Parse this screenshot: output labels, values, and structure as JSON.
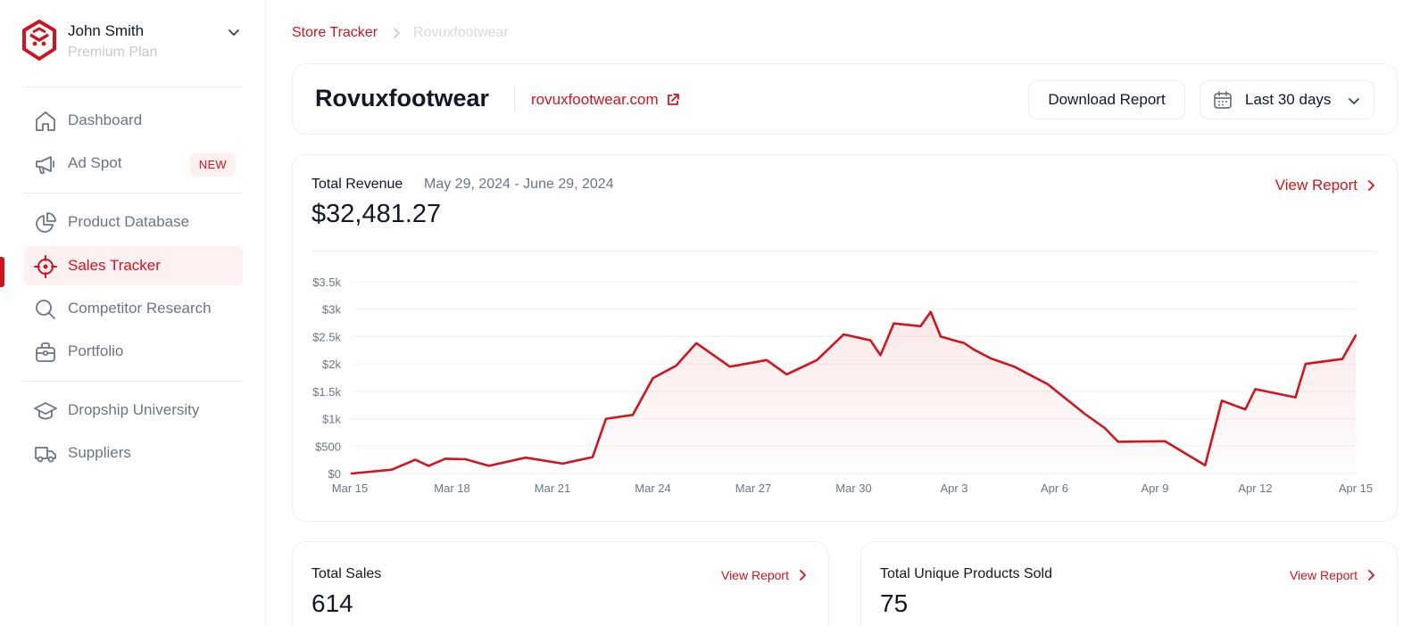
{
  "profile": {
    "name": "John Smith",
    "plan": "Premium Plan"
  },
  "nav": {
    "dashboard": "Dashboard",
    "ad_spot": "Ad Spot",
    "ad_spot_badge": "NEW",
    "product_database": "Product Database",
    "sales_tracker": "Sales Tracker",
    "competitor_research": "Competitor Research",
    "portfolio": "Portfolio",
    "dropship_university": "Dropship University",
    "suppliers": "Suppliers"
  },
  "breadcrumb": {
    "root": "Store Tracker",
    "current": "Rovuxfootwear"
  },
  "store": {
    "name": "Rovuxfootwear",
    "url": "rovuxfootwear.com",
    "download_label": "Download Report",
    "range_label": "Last 30 days"
  },
  "revenue": {
    "label": "Total Revenue",
    "dates": "May 29, 2024 - June 29, 2024",
    "value": "$32,481.27",
    "view_report": "View Report"
  },
  "stats": {
    "total_sales_label": "Total Sales",
    "total_sales_value": "614",
    "unique_products_label": "Total Unique Products Sold",
    "unique_products_value": "75",
    "view_report": "View Report"
  },
  "colors": {
    "accent": "#d0151f",
    "text": "#111827",
    "muted": "#6b7587"
  },
  "chart_data": {
    "type": "area",
    "title": "",
    "xlabel": "",
    "ylabel": "",
    "ylim": [
      0,
      3500
    ],
    "y_ticks": [
      0,
      500,
      1000,
      1500,
      2000,
      2500,
      3000,
      3500
    ],
    "y_tick_labels": [
      "$0",
      "$500",
      "$1k",
      "$1.5k",
      "$2k",
      "$2.5k",
      "$3k",
      "$3.5k"
    ],
    "x_tick_labels": [
      "Mar 15",
      "Mar 18",
      "Mar 21",
      "Mar 24",
      "Mar 27",
      "Mar 30",
      "Apr 3",
      "Apr 6",
      "Apr 9",
      "Apr 12",
      "Apr 15"
    ],
    "x_tick_positions": [
      0,
      3,
      6,
      9,
      12,
      15,
      18,
      21,
      24,
      27,
      30
    ],
    "x": [
      0,
      1.2,
      1.9,
      2.3,
      2.8,
      3.4,
      4.1,
      5.2,
      6.3,
      7.2,
      7.6,
      8.4,
      9.0,
      9.7,
      10.3,
      11.3,
      12.4,
      13.0,
      13.9,
      14.7,
      15.5,
      15.8,
      16.2,
      17.0,
      17.3,
      17.6,
      18.0,
      18.3,
      18.6,
      19.1,
      19.8,
      20.8,
      21.9,
      22.5,
      22.9,
      24.3,
      25.5,
      26.0,
      26.7,
      27.0,
      28.2,
      28.5,
      29.6,
      30.0
    ],
    "series": [
      {
        "values": [
          0,
          70,
          250,
          140,
          270,
          260,
          140,
          290,
          180,
          300,
          1000,
          1070,
          1740,
          1970,
          2380,
          1950,
          2070,
          1810,
          2070,
          2540,
          2430,
          2160,
          2740,
          2690,
          2950,
          2500,
          2430,
          2380,
          2260,
          2100,
          1950,
          1630,
          1090,
          830,
          580,
          590,
          150,
          1330,
          1170,
          1540,
          1390,
          2000,
          2090,
          2520
        ]
      }
    ]
  }
}
